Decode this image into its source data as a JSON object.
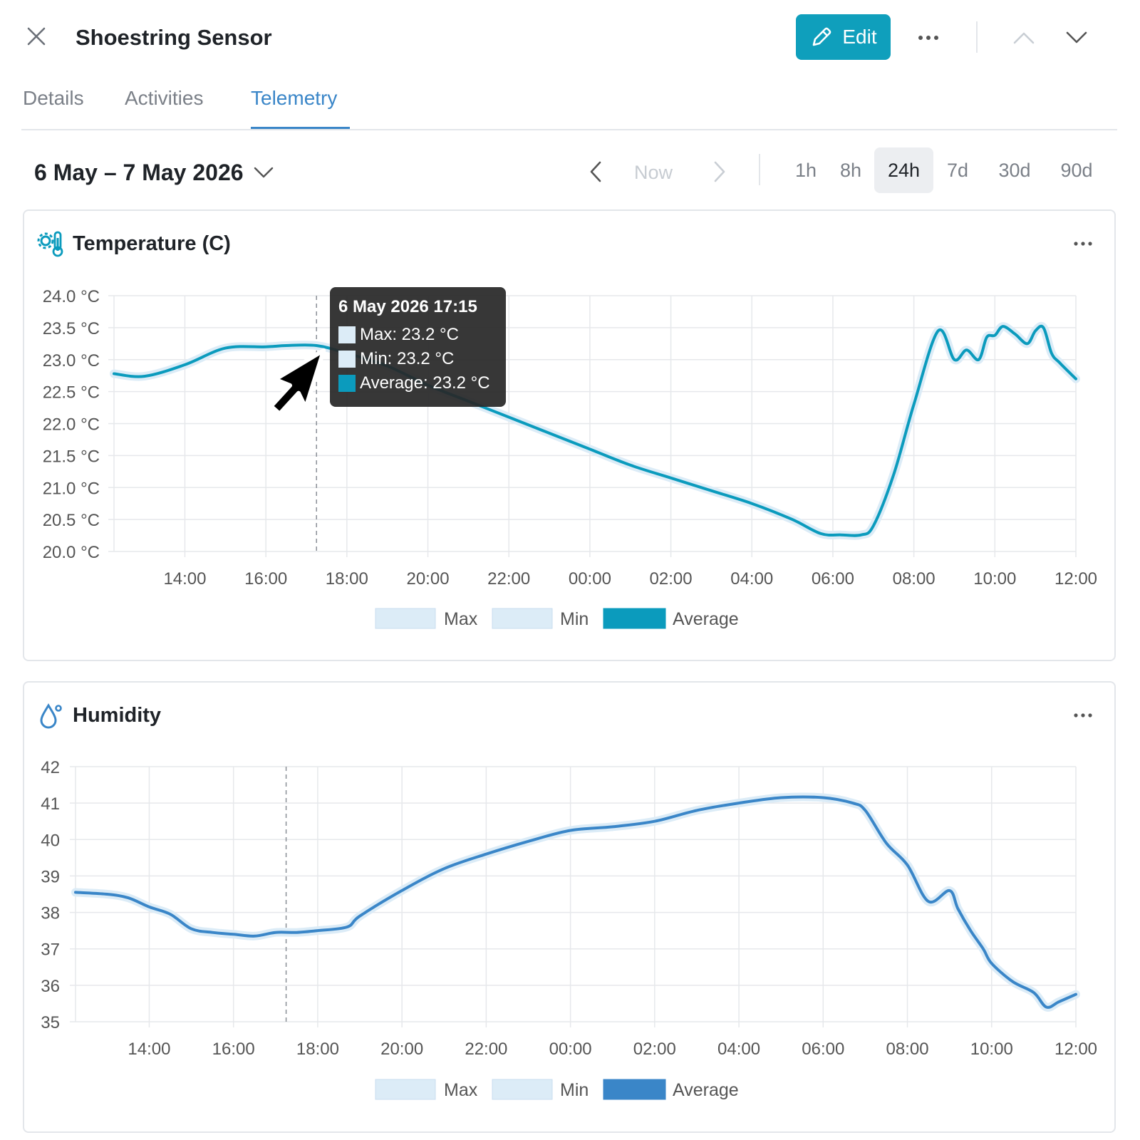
{
  "header": {
    "title": "Shoestring Sensor",
    "edit_label": "Edit",
    "accent_color": "#0f9fbc"
  },
  "tabs": [
    {
      "label": "Details",
      "active": false
    },
    {
      "label": "Activities",
      "active": false
    },
    {
      "label": "Telemetry",
      "active": true
    }
  ],
  "range": {
    "date_label": "6 May – 7 May 2026",
    "now_label": "Now",
    "options": [
      "1h",
      "8h",
      "24h",
      "7d",
      "30d",
      "90d"
    ],
    "selected": "24h"
  },
  "temperature": {
    "title": "Temperature (C)",
    "icon": "thermometer-gear-icon",
    "tooltip": {
      "title": "6 May 2026 17:15",
      "max": "Max: 23.2 °C",
      "min": "Min: 23.2 °C",
      "average": "Average: 23.2 °C"
    }
  },
  "humidity": {
    "title": "Humidity",
    "icon": "droplet-icon"
  },
  "chart_data": [
    {
      "type": "line",
      "title": "Temperature (C)",
      "x_ticks": [
        "14:00",
        "16:00",
        "18:00",
        "20:00",
        "22:00",
        "00:00",
        "02:00",
        "04:00",
        "06:00",
        "08:00",
        "10:00",
        "12:00"
      ],
      "y_ticks": [
        "24.0 °C",
        "23.5 °C",
        "23.0 °C",
        "22.5 °C",
        "22.0 °C",
        "21.5 °C",
        "21.0 °C",
        "20.5 °C",
        "20.0 °C"
      ],
      "ylim": [
        20.0,
        24.0
      ],
      "x_start_hours": 12.25,
      "x_end_hours": 36.0,
      "legend": [
        "Max",
        "Min",
        "Average"
      ],
      "legend_position": "bottom",
      "colors": {
        "average": "#0b9bbd",
        "band": "#dcecf7"
      },
      "hover_hours": 17.25,
      "series": [
        {
          "name": "Average",
          "x": [
            12.25,
            13.0,
            14.0,
            15.0,
            16.0,
            16.5,
            17.25,
            18.0,
            19.0,
            20.0,
            21.0,
            22.0,
            23.0,
            24.0,
            25.0,
            26.0,
            27.0,
            28.0,
            29.0,
            29.7,
            30.2,
            30.7,
            31.0,
            31.5,
            32.0,
            32.6,
            33.0,
            33.3,
            33.6,
            33.8,
            34.0,
            34.2,
            34.5,
            34.8,
            35.0,
            35.2,
            35.4,
            35.6,
            36.0
          ],
          "y": [
            22.78,
            22.74,
            22.92,
            23.18,
            23.2,
            23.22,
            23.22,
            23.1,
            22.9,
            22.6,
            22.35,
            22.1,
            21.85,
            21.6,
            21.35,
            21.15,
            20.95,
            20.75,
            20.5,
            20.28,
            20.26,
            20.26,
            20.4,
            21.2,
            22.3,
            23.45,
            23.0,
            23.15,
            23.0,
            23.35,
            23.38,
            23.52,
            23.4,
            23.25,
            23.45,
            23.5,
            23.1,
            22.95,
            22.7
          ]
        }
      ]
    },
    {
      "type": "line",
      "title": "Humidity",
      "x_ticks": [
        "14:00",
        "16:00",
        "18:00",
        "20:00",
        "22:00",
        "00:00",
        "02:00",
        "04:00",
        "06:00",
        "08:00",
        "10:00",
        "12:00"
      ],
      "y_ticks": [
        "42",
        "41",
        "40",
        "39",
        "38",
        "37",
        "36",
        "35"
      ],
      "ylim": [
        35,
        42
      ],
      "x_start_hours": 12.25,
      "x_end_hours": 36.0,
      "legend": [
        "Max",
        "Min",
        "Average"
      ],
      "legend_position": "bottom",
      "colors": {
        "average": "#3a86c8",
        "band": "#dcecf7"
      },
      "hover_hours": 17.25,
      "series": [
        {
          "name": "Average",
          "x": [
            12.25,
            13.0,
            13.5,
            14.0,
            14.5,
            15.0,
            15.5,
            16.0,
            16.5,
            17.0,
            17.5,
            18.0,
            18.7,
            19.0,
            20.0,
            21.0,
            22.0,
            23.0,
            24.0,
            25.0,
            26.0,
            27.0,
            28.0,
            29.0,
            30.0,
            30.7,
            31.0,
            31.5,
            32.0,
            32.5,
            33.0,
            33.2,
            33.5,
            33.8,
            34.0,
            34.5,
            35.0,
            35.3,
            35.6,
            36.0
          ],
          "y": [
            38.55,
            38.5,
            38.4,
            38.15,
            37.95,
            37.55,
            37.45,
            37.4,
            37.35,
            37.45,
            37.45,
            37.5,
            37.6,
            37.9,
            38.6,
            39.2,
            39.6,
            39.95,
            40.25,
            40.35,
            40.5,
            40.8,
            41.0,
            41.15,
            41.15,
            41.0,
            40.8,
            39.9,
            39.3,
            38.3,
            38.6,
            38.1,
            37.5,
            37.0,
            36.6,
            36.1,
            35.8,
            35.4,
            35.55,
            35.75
          ]
        }
      ]
    }
  ]
}
